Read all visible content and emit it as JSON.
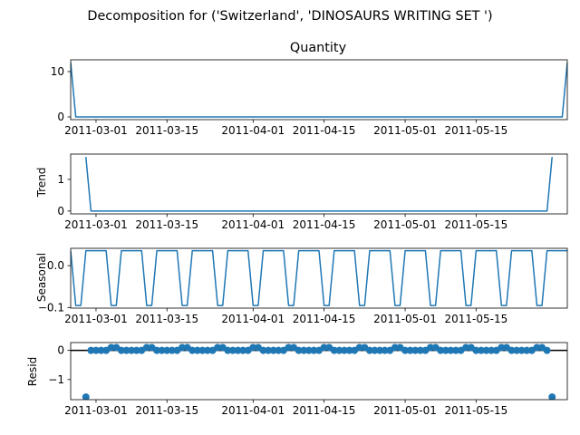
{
  "figure": {
    "suptitle": "Decomposition for ('Switzerland', 'DINOSAURS  WRITING SET ')"
  },
  "chart_data": [
    {
      "type": "line",
      "panel": "observed",
      "title": "Quantity",
      "ylabel": "",
      "xlim": [
        "2011-02-24",
        "2011-06-02"
      ],
      "ylim": [
        -0.6,
        12.6
      ],
      "yticks": [
        0,
        10
      ],
      "xticks": [
        "2011-03-01",
        "2011-03-15",
        "2011-04-01",
        "2011-04-15",
        "2011-05-01",
        "2011-05-15"
      ],
      "x": [
        "2011-02-24",
        "2011-02-25",
        "2011-06-01",
        "2011-06-02"
      ],
      "values": [
        12,
        0,
        0,
        12
      ],
      "color": "#1f77b4",
      "grid": false
    },
    {
      "type": "line",
      "panel": "trend",
      "title": "",
      "ylabel": "Trend",
      "xlim": [
        "2011-02-24",
        "2011-06-02"
      ],
      "ylim": [
        -0.09,
        1.8
      ],
      "yticks": [
        0,
        1
      ],
      "xticks": [
        "2011-03-01",
        "2011-03-15",
        "2011-04-01",
        "2011-04-15",
        "2011-05-01",
        "2011-05-15"
      ],
      "x": [
        "2011-02-27",
        "2011-02-28",
        "2011-05-29",
        "2011-05-30"
      ],
      "values": [
        1.71,
        0,
        0,
        1.71
      ],
      "color": "#1f77b4",
      "grid": false
    },
    {
      "type": "line",
      "panel": "seasonal",
      "title": "",
      "ylabel": "Seasonal",
      "xlim": [
        "2011-02-24",
        "2011-06-02"
      ],
      "ylim": [
        -0.1015,
        0.0415
      ],
      "yticks": [
        0.0,
        -0.1
      ],
      "ytick_labels": [
        "0.0",
        "−0.1"
      ],
      "xticks": [
        "2011-03-01",
        "2011-03-15",
        "2011-04-01",
        "2011-04-15",
        "2011-05-01",
        "2011-05-15"
      ],
      "start": "2011-02-24",
      "end": "2011-06-02",
      "pattern": [
        0.0357,
        -0.0952,
        -0.0952,
        0.0357,
        0.0357,
        0.0357,
        0.0357
      ],
      "color": "#1f77b4",
      "grid": false
    },
    {
      "type": "scatter",
      "panel": "resid",
      "title": "",
      "ylabel": "Resid",
      "xlim": [
        "2011-02-24",
        "2011-06-02"
      ],
      "ylim": [
        -1.69,
        0.27
      ],
      "yticks": [
        0,
        -1
      ],
      "ytick_labels": [
        "0",
        "−1"
      ],
      "xticks": [
        "2011-03-01",
        "2011-03-15",
        "2011-04-01",
        "2011-04-15",
        "2011-05-01",
        "2011-05-15"
      ],
      "baseline": 0,
      "start": "2011-02-27",
      "end": "2011-05-30",
      "pattern": [
        0.0,
        0.0,
        0.0,
        0.0,
        0.0,
        0.1,
        0.1
      ],
      "outliers": [
        {
          "x": "2011-02-27",
          "y": -1.6
        },
        {
          "x": "2011-05-30",
          "y": -1.6
        }
      ],
      "color": "#1f77b4",
      "grid": false
    }
  ]
}
